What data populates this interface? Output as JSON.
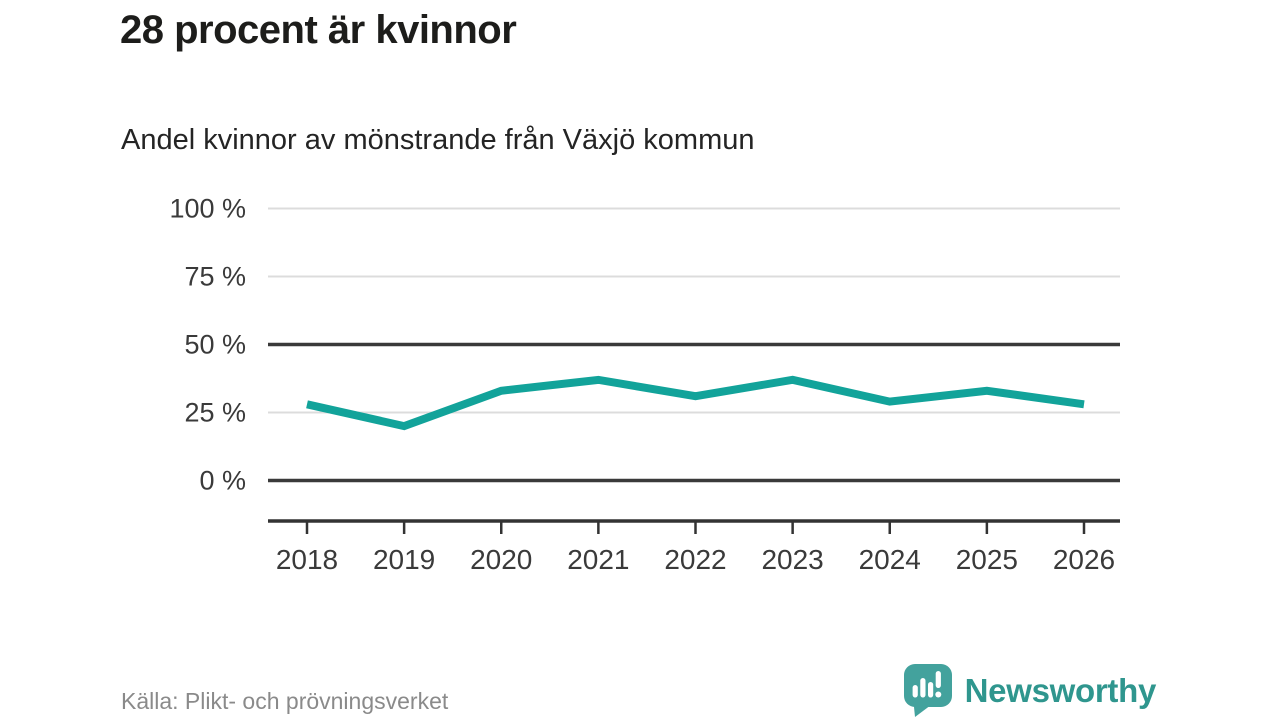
{
  "page": {
    "title": "28 procent är kvinnor",
    "subtitle": "Andel kvinnor av mönstrande från Växjö kommun",
    "source": "Källa: Plikt- och prövningsverket",
    "brand": {
      "name": "Newsworthy"
    }
  },
  "colors": {
    "line": "#12a39a",
    "grid_light": "#dcdcdc",
    "grid_dark": "#3a3a3a",
    "axis": "#333333",
    "tick_text": "#3a3a3a",
    "title_text": "#1d1d1b",
    "subtitle_text": "#242424",
    "source_text": "#8a8a8a",
    "brand_teal": "#2f968e",
    "logo_bubble": "#43a29d"
  },
  "chart_data": {
    "type": "line",
    "title": "28 procent är kvinnor",
    "subtitle": "Andel kvinnor av mönstrande från Växjö kommun",
    "categories": [
      "2018",
      "2019",
      "2020",
      "2021",
      "2022",
      "2023",
      "2024",
      "2025",
      "2026"
    ],
    "series": [
      {
        "name": "Andel kvinnor av mönstrande",
        "values": [
          28,
          20,
          33,
          37,
          31,
          37,
          29,
          33,
          28
        ]
      }
    ],
    "unit": "%",
    "xlabel": "",
    "ylabel": "",
    "ylim": [
      0,
      100
    ],
    "y_ticks": [
      {
        "label": "100 %",
        "value": 100,
        "emphasized": false
      },
      {
        "label": "75 %",
        "value": 75,
        "emphasized": false
      },
      {
        "label": "50 %",
        "value": 50,
        "emphasized": true
      },
      {
        "label": "25 %",
        "value": 25,
        "emphasized": false
      },
      {
        "label": "0 %",
        "value": 0,
        "emphasized": true
      }
    ],
    "grid": true,
    "legend": "none",
    "source": "Källa: Plikt- och prövningsverket"
  }
}
